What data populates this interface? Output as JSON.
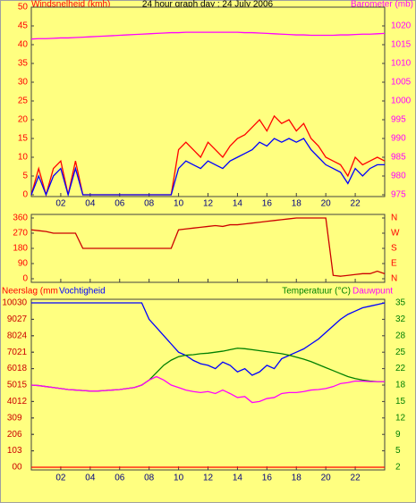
{
  "chart_data": [
    {
      "type": "line",
      "title": "24 hour graph day : 24 July 2006",
      "ylabel": "Windsnelheid (kmh)",
      "y2label": "Barometer (mb)",
      "x": [
        0,
        0.5,
        1,
        1.5,
        2,
        2.5,
        3,
        3.5,
        4,
        4.5,
        5,
        5.5,
        6,
        6.5,
        7,
        7.5,
        8,
        8.5,
        9,
        9.5,
        10,
        10.5,
        11,
        11.5,
        12,
        12.5,
        13,
        13.5,
        14,
        14.5,
        15,
        15.5,
        16,
        16.5,
        17,
        17.5,
        18,
        18.5,
        19,
        19.5,
        20,
        20.5,
        21,
        21.5,
        22,
        22.5,
        23,
        23.5,
        24
      ],
      "xlim": [
        0,
        24
      ],
      "xticks": [
        {
          "value": 2,
          "label": "02"
        },
        {
          "value": 4,
          "label": "04"
        },
        {
          "value": 6,
          "label": "06"
        },
        {
          "value": 8,
          "label": "08"
        },
        10,
        12,
        14,
        16,
        18,
        20,
        22
      ],
      "ylim": [
        0,
        50
      ],
      "yticks": [
        0,
        5,
        10,
        15,
        20,
        25,
        30,
        35,
        40,
        45,
        50
      ],
      "y2lim": [
        975,
        1025
      ],
      "y2ticks": [
        975,
        980,
        985,
        990,
        995,
        1000,
        1005,
        1010,
        1015,
        1020
      ],
      "series": [
        {
          "color": "#ff0000",
          "values": [
            0,
            7,
            0,
            7,
            9,
            0,
            9,
            0,
            0,
            0,
            0,
            0,
            0,
            0,
            0,
            0,
            0,
            0,
            0,
            0,
            12,
            14,
            12,
            10,
            14,
            12,
            10,
            13,
            15,
            16,
            18,
            20,
            17,
            21,
            19,
            20,
            17,
            19,
            15,
            13,
            10,
            9,
            8,
            5,
            10,
            8,
            9,
            10,
            9
          ]
        },
        {
          "color": "#0000ff",
          "values": [
            0,
            5,
            0,
            5,
            7,
            0,
            7,
            0,
            0,
            0,
            0,
            0,
            0,
            0,
            0,
            0,
            0,
            0,
            0,
            0,
            7,
            9,
            8,
            7,
            9,
            8,
            7,
            9,
            10,
            11,
            12,
            14,
            13,
            15,
            14,
            15,
            14,
            15,
            12,
            10,
            8,
            7,
            6,
            3,
            7,
            5,
            7,
            8,
            8
          ]
        },
        {
          "color": "#ff00ff",
          "axis": "y2",
          "values": [
            1016.5,
            1016.6,
            1016.6,
            1016.7,
            1016.8,
            1016.8,
            1016.9,
            1017.0,
            1017.1,
            1017.2,
            1017.3,
            1017.4,
            1017.5,
            1017.6,
            1017.7,
            1017.8,
            1017.9,
            1018.0,
            1018.1,
            1018.2,
            1018.2,
            1018.3,
            1018.3,
            1018.3,
            1018.3,
            1018.3,
            1018.3,
            1018.3,
            1018.3,
            1018.2,
            1018.2,
            1018.1,
            1018.0,
            1017.9,
            1017.8,
            1017.7,
            1017.6,
            1017.6,
            1017.5,
            1017.5,
            1017.5,
            1017.5,
            1017.6,
            1017.6,
            1017.7,
            1017.8,
            1017.8,
            1017.9,
            1018.0
          ]
        }
      ]
    },
    {
      "type": "line",
      "x": [
        0,
        0.5,
        1,
        1.5,
        2,
        2.5,
        3,
        3.5,
        4,
        4.5,
        5,
        5.5,
        6,
        6.5,
        7,
        7.5,
        8,
        8.5,
        9,
        9.5,
        10,
        10.5,
        11,
        11.5,
        12,
        12.5,
        13,
        13.5,
        14,
        14.5,
        15,
        15.5,
        16,
        16.5,
        17,
        17.5,
        18,
        18.5,
        19,
        19.5,
        20,
        20.5,
        21,
        21.5,
        22,
        22.5,
        23,
        23.5,
        24
      ],
      "xlim": [
        0,
        24
      ],
      "xticks": [
        {
          "value": 2,
          "label": "02"
        },
        {
          "value": 4,
          "label": "04"
        },
        {
          "value": 6,
          "label": "06"
        },
        {
          "value": 8,
          "label": "08"
        },
        10,
        12,
        14,
        16,
        18,
        20,
        22
      ],
      "ylim": [
        0,
        360
      ],
      "yticks": [
        0,
        90,
        180,
        270,
        360
      ],
      "y2lim": [
        0,
        360
      ],
      "y2ticks": [
        {
          "value": 0,
          "label": "N"
        },
        {
          "value": 90,
          "label": "E"
        },
        {
          "value": 180,
          "label": "S"
        },
        {
          "value": 270,
          "label": "W"
        },
        {
          "value": 360,
          "label": "N"
        }
      ],
      "series": [
        {
          "color": "#cc0000",
          "values": [
            290,
            285,
            280,
            270,
            270,
            270,
            270,
            180,
            180,
            180,
            180,
            180,
            180,
            180,
            180,
            180,
            180,
            180,
            180,
            180,
            290,
            295,
            300,
            305,
            310,
            315,
            310,
            320,
            320,
            325,
            330,
            335,
            340,
            345,
            350,
            355,
            360,
            360,
            360,
            360,
            360,
            20,
            15,
            20,
            25,
            30,
            30,
            45,
            30
          ]
        }
      ]
    },
    {
      "type": "line",
      "x": [
        0,
        0.5,
        1,
        1.5,
        2,
        2.5,
        3,
        3.5,
        4,
        4.5,
        5,
        5.5,
        6,
        6.5,
        7,
        7.5,
        8,
        8.5,
        9,
        9.5,
        10,
        10.5,
        11,
        11.5,
        12,
        12.5,
        13,
        13.5,
        14,
        14.5,
        15,
        15.5,
        16,
        16.5,
        17,
        17.5,
        18,
        18.5,
        19,
        19.5,
        20,
        20.5,
        21,
        21.5,
        22,
        22.5,
        23,
        23.5,
        24
      ],
      "xlim": [
        0,
        24
      ],
      "xticks": [
        {
          "value": 2,
          "label": "02"
        },
        {
          "value": 4,
          "label": "04"
        },
        {
          "value": 6,
          "label": "06"
        },
        {
          "value": 8,
          "label": "08"
        },
        10,
        12,
        14,
        16,
        18,
        20,
        22
      ],
      "ylim": [
        0,
        100
      ],
      "yticks": [
        0,
        10,
        20,
        30,
        40,
        50,
        60,
        70,
        80,
        90,
        100
      ],
      "y2lim": [
        0,
        30
      ],
      "y2ticks": [
        0,
        3,
        6,
        9,
        12,
        15,
        18,
        21,
        24,
        27,
        30
      ],
      "y3lim": [
        2,
        35
      ],
      "y3ticks": [
        2,
        {
          "value": 5.3,
          "label": "5"
        },
        {
          "value": 8.6,
          "label": "9"
        },
        {
          "value": 11.9,
          "label": "12"
        },
        {
          "value": 15.2,
          "label": "15"
        },
        {
          "value": 18.5,
          "label": "18"
        },
        {
          "value": 21.8,
          "label": "22"
        },
        {
          "value": 25.1,
          "label": "25"
        },
        {
          "value": 28.4,
          "label": "28"
        },
        {
          "value": 31.7,
          "label": "32"
        },
        35
      ],
      "series": [
        {
          "name": "Neerslag (mm",
          "color": "#ff0000",
          "axis": "y2",
          "values": [
            0,
            0,
            0,
            0,
            0,
            0,
            0,
            0,
            0,
            0,
            0,
            0,
            0,
            0,
            0,
            0,
            0,
            0,
            0,
            0,
            0,
            0,
            0,
            0,
            0,
            0,
            0,
            0,
            0,
            0,
            0,
            0,
            0,
            0,
            0,
            0,
            0,
            0,
            0,
            0,
            0,
            0,
            0,
            0,
            0,
            0,
            0,
            0,
            0
          ]
        },
        {
          "name": "Vochtigheid",
          "color": "#0000ff",
          "values": [
            100,
            100,
            100,
            100,
            100,
            100,
            100,
            100,
            100,
            100,
            100,
            100,
            100,
            100,
            100,
            100,
            90,
            85,
            80,
            75,
            70,
            68,
            65,
            63,
            62,
            60,
            64,
            62,
            58,
            60,
            56,
            58,
            62,
            60,
            66,
            68,
            70,
            72,
            75,
            78,
            82,
            86,
            90,
            93,
            95,
            97,
            98,
            99,
            100
          ]
        },
        {
          "name": "Temperatuur (°C)",
          "color": "#008000",
          "axis": "y3",
          "values": [
            18.5,
            18.4,
            18.2,
            18.0,
            17.8,
            17.6,
            17.5,
            17.4,
            17.3,
            17.3,
            17.4,
            17.5,
            17.6,
            17.8,
            18.0,
            18.5,
            19.5,
            21.0,
            22.5,
            23.5,
            24.2,
            24.5,
            24.6,
            24.8,
            24.9,
            25.1,
            25.3,
            25.6,
            25.9,
            25.8,
            25.6,
            25.4,
            25.2,
            25.0,
            24.8,
            24.5,
            24.1,
            23.7,
            23.2,
            22.6,
            22.0,
            21.4,
            20.8,
            20.2,
            19.8,
            19.5,
            19.3,
            19.2,
            19.2
          ]
        },
        {
          "name": "Dauwpunt",
          "color": "#ff00ff",
          "axis": "y3",
          "values": [
            18.5,
            18.4,
            18.2,
            18.0,
            17.8,
            17.6,
            17.5,
            17.4,
            17.3,
            17.3,
            17.4,
            17.5,
            17.6,
            17.8,
            18.0,
            18.5,
            19.5,
            20.2,
            19.5,
            18.5,
            18.0,
            17.5,
            17.2,
            17.0,
            17.2,
            16.8,
            17.5,
            16.8,
            16.0,
            16.2,
            15.0,
            15.2,
            15.8,
            16.0,
            16.8,
            17.0,
            17.0,
            17.2,
            17.5,
            17.6,
            17.8,
            18.2,
            18.8,
            19.0,
            19.3,
            19.3,
            19.2,
            19.2,
            19.2
          ]
        }
      ]
    }
  ]
}
